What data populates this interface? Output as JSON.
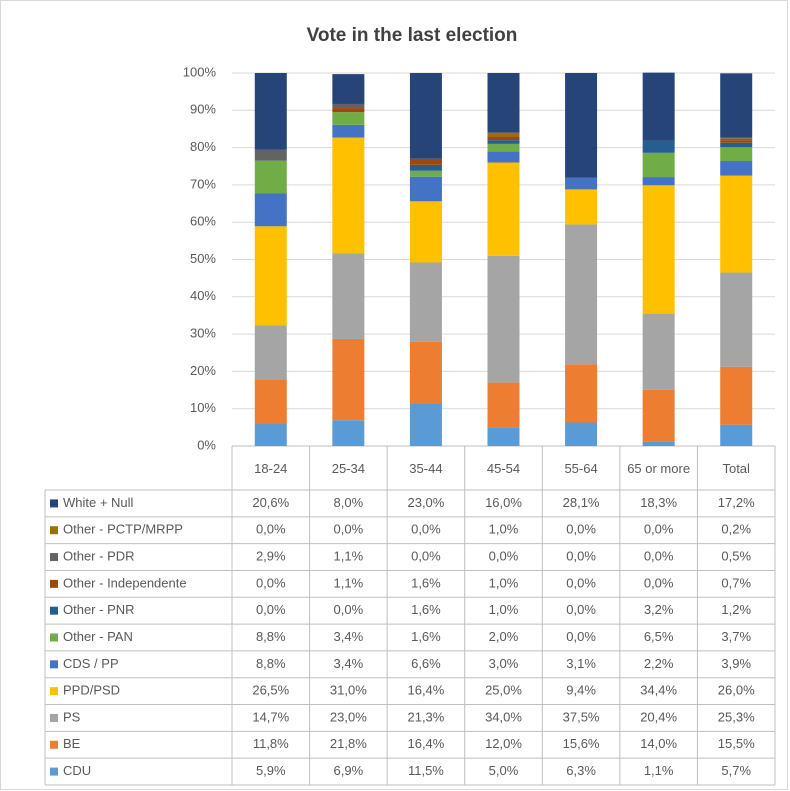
{
  "chart_data": {
    "type": "bar",
    "stacked": true,
    "title": "Vote in the last election",
    "categories": [
      "18-24",
      "25-34",
      "35-44",
      "45-54",
      "55-64",
      "65 or more",
      "Total"
    ],
    "ylim": [
      0,
      100
    ],
    "yticks": [
      {
        "value": 0,
        "label": "0%"
      },
      {
        "value": 10,
        "label": "10%"
      },
      {
        "value": 20,
        "label": "20%"
      },
      {
        "value": 30,
        "label": "30%"
      },
      {
        "value": 40,
        "label": "40%"
      },
      {
        "value": 50,
        "label": "50%"
      },
      {
        "value": 60,
        "label": "60%"
      },
      {
        "value": 70,
        "label": "70%"
      },
      {
        "value": 80,
        "label": "80%"
      },
      {
        "value": 90,
        "label": "90%"
      },
      {
        "value": 100,
        "label": "100%"
      }
    ],
    "grid": true,
    "series": [
      {
        "name": "CDU",
        "color": "#5b9bd5",
        "values": [
          5.9,
          6.9,
          11.5,
          5.0,
          6.3,
          1.1,
          5.7
        ],
        "value_labels": [
          "5,9%",
          "6,9%",
          "11,5%",
          "5,0%",
          "6,3%",
          "1,1%",
          "5,7%"
        ]
      },
      {
        "name": "BE",
        "color": "#ed7d31",
        "values": [
          11.8,
          21.8,
          16.4,
          12.0,
          15.6,
          14.0,
          15.5
        ],
        "value_labels": [
          "11,8%",
          "21,8%",
          "16,4%",
          "12,0%",
          "15,6%",
          "14,0%",
          "15,5%"
        ]
      },
      {
        "name": "PS",
        "color": "#a5a5a5",
        "values": [
          14.7,
          23.0,
          21.3,
          34.0,
          37.5,
          20.4,
          25.3
        ],
        "value_labels": [
          "14,7%",
          "23,0%",
          "21,3%",
          "34,0%",
          "37,5%",
          "20,4%",
          "25,3%"
        ]
      },
      {
        "name": "PPD/PSD",
        "color": "#ffc000",
        "values": [
          26.5,
          31.0,
          16.4,
          25.0,
          9.4,
          34.4,
          26.0
        ],
        "value_labels": [
          "26,5%",
          "31,0%",
          "16,4%",
          "25,0%",
          "9,4%",
          "34,4%",
          "26,0%"
        ]
      },
      {
        "name": "CDS / PP",
        "color": "#4472c4",
        "values": [
          8.8,
          3.4,
          6.6,
          3.0,
          3.1,
          2.2,
          3.9
        ],
        "value_labels": [
          "8,8%",
          "3,4%",
          "6,6%",
          "3,0%",
          "3,1%",
          "2,2%",
          "3,9%"
        ]
      },
      {
        "name": "Other - PAN",
        "color": "#70ad47",
        "values": [
          8.8,
          3.4,
          1.6,
          2.0,
          0.0,
          6.5,
          3.7
        ],
        "value_labels": [
          "8,8%",
          "3,4%",
          "1,6%",
          "2,0%",
          "0,0%",
          "6,5%",
          "3,7%"
        ]
      },
      {
        "name": "Other - PNR",
        "color": "#255e91",
        "values": [
          0.0,
          0.0,
          1.6,
          1.0,
          0.0,
          3.2,
          1.2
        ],
        "value_labels": [
          "0,0%",
          "0,0%",
          "1,6%",
          "1,0%",
          "0,0%",
          "3,2%",
          "1,2%"
        ]
      },
      {
        "name": "Other - Independente",
        "color": "#9e480e",
        "values": [
          0.0,
          1.1,
          1.6,
          1.0,
          0.0,
          0.0,
          0.7
        ],
        "value_labels": [
          "0,0%",
          "1,1%",
          "1,6%",
          "1,0%",
          "0,0%",
          "0,0%",
          "0,7%"
        ]
      },
      {
        "name": "Other - PDR",
        "color": "#636363",
        "values": [
          2.9,
          1.1,
          0.0,
          0.0,
          0.0,
          0.0,
          0.5
        ],
        "value_labels": [
          "2,9%",
          "1,1%",
          "0,0%",
          "0,0%",
          "0,0%",
          "0,0%",
          "0,5%"
        ]
      },
      {
        "name": "Other - PCTP/MRPP",
        "color": "#997300",
        "values": [
          0.0,
          0.0,
          0.0,
          1.0,
          0.0,
          0.0,
          0.2
        ],
        "value_labels": [
          "0,0%",
          "0,0%",
          "0,0%",
          "1,0%",
          "0,0%",
          "0,0%",
          "0,2%"
        ]
      },
      {
        "name": "White + Null",
        "color": "#264478",
        "values": [
          20.6,
          8.0,
          23.0,
          16.0,
          28.1,
          18.3,
          17.2
        ],
        "value_labels": [
          "20,6%",
          "8,0%",
          "23,0%",
          "16,0%",
          "28,1%",
          "18,3%",
          "17,2%"
        ]
      }
    ]
  }
}
